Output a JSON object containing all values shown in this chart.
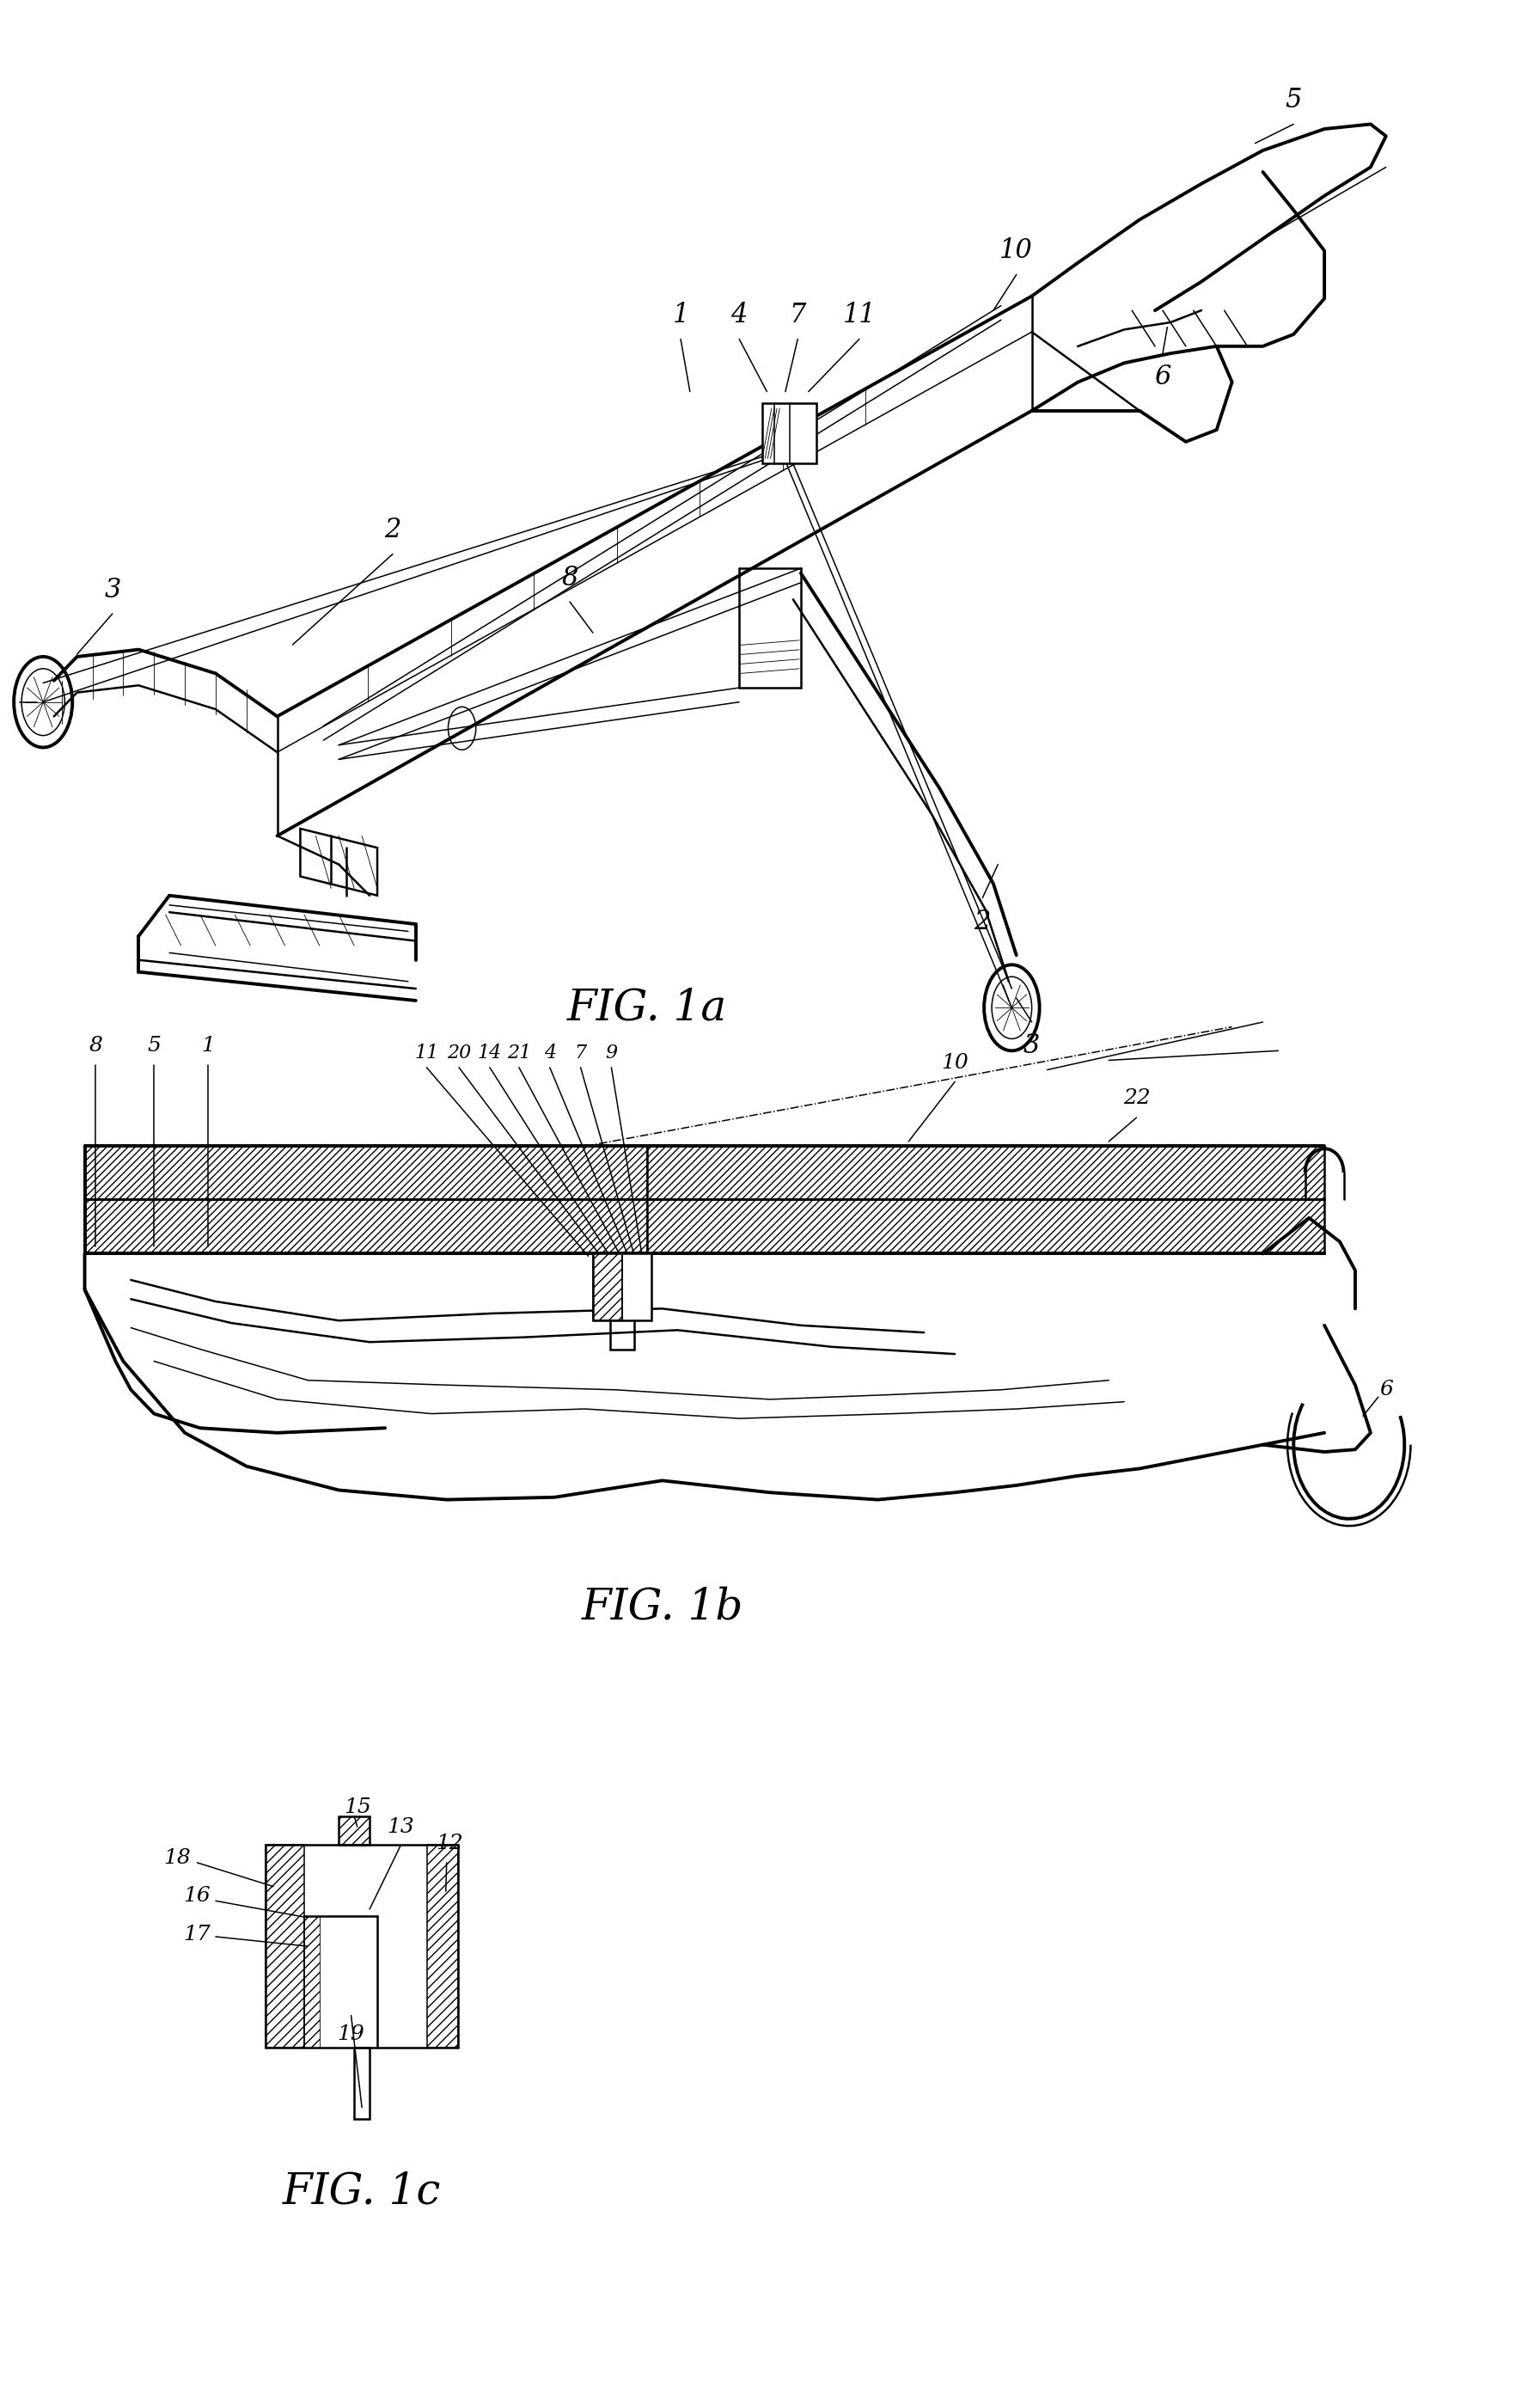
{
  "bg_color": "#ffffff",
  "fig_width": 17.92,
  "fig_height": 27.78,
  "fig1a_label": "FIG. 1a",
  "fig1b_label": "FIG. 1b",
  "fig1c_label": "FIG. 1c",
  "lc": "#000000",
  "lw_thick": 2.8,
  "lw_med": 1.8,
  "lw_thin": 1.1,
  "lw_hair": 0.6,
  "fs_part": 22,
  "fs_caption": 36
}
